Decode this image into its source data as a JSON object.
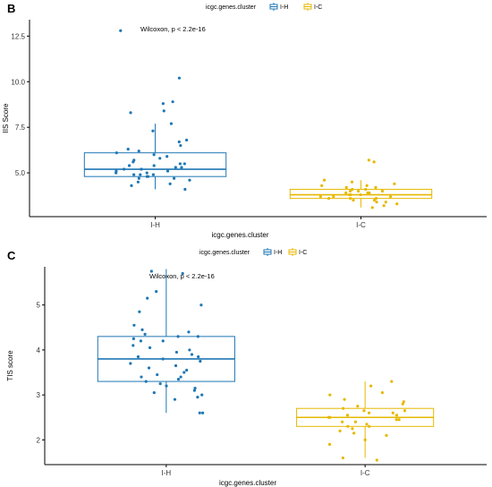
{
  "chart_data": [
    {
      "panel": "B",
      "type": "box",
      "legend_title": "icgc.genes.cluster",
      "legend_position": "top",
      "categories": [
        "I-H",
        "I-C"
      ],
      "colors": [
        "#1f77b4",
        "#e6b800"
      ],
      "xlabel": "icgc.genes.cluster",
      "ylabel": "IIS Score",
      "ylim": [
        2.6,
        13.4
      ],
      "yticks": [
        5.0,
        7.5,
        10.0,
        12.5
      ],
      "ytick_labels": [
        "5.0",
        "7.5",
        "10.0",
        "12.5"
      ],
      "annotation": "Wilcoxon, p < 2.2e-16",
      "grid": false,
      "series": [
        {
          "name": "I-H",
          "box": {
            "min": 4.1,
            "q1": 4.8,
            "median": 5.2,
            "q3": 6.1,
            "max": 7.7
          },
          "points": [
            12.8,
            10.2,
            8.9,
            8.8,
            8.4,
            8.3,
            7.7,
            7.3,
            6.8,
            6.7,
            6.5,
            6.3,
            6.2,
            6.1,
            6.0,
            5.9,
            5.8,
            5.7,
            5.6,
            5.5,
            5.5,
            5.4,
            5.4,
            5.3,
            5.3,
            5.2,
            5.2,
            5.1,
            5.1,
            5.0,
            5.0,
            4.9,
            4.9,
            4.9,
            4.8,
            4.8,
            4.7,
            4.7,
            4.6,
            4.5,
            4.4,
            4.3,
            4.1
          ]
        },
        {
          "name": "I-C",
          "box": {
            "min": 3.1,
            "q1": 3.6,
            "median": 3.8,
            "q3": 4.1,
            "max": 4.6
          },
          "points": [
            5.7,
            5.6,
            4.6,
            4.5,
            4.4,
            4.3,
            4.3,
            4.2,
            4.2,
            4.1,
            4.1,
            4.0,
            4.0,
            4.0,
            3.9,
            3.9,
            3.9,
            3.8,
            3.8,
            3.8,
            3.7,
            3.7,
            3.7,
            3.6,
            3.6,
            3.6,
            3.5,
            3.5,
            3.4,
            3.4,
            3.3,
            3.2,
            3.1
          ]
        }
      ]
    },
    {
      "panel": "C",
      "type": "box",
      "legend_title": "icgc.genes.cluster",
      "legend_position": "top",
      "categories": [
        "I-H",
        "I-C"
      ],
      "colors": [
        "#1f77b4",
        "#e6b800"
      ],
      "xlabel": "icgc.genes.cluster",
      "ylabel": "TIS score",
      "ylim": [
        1.45,
        5.85
      ],
      "yticks": [
        2,
        3,
        4,
        5
      ],
      "ytick_labels": [
        "2",
        "3",
        "4",
        "5"
      ],
      "annotation": "Wilcoxon, p < 2.2e-16",
      "grid": false,
      "series": [
        {
          "name": "I-H",
          "box": {
            "min": 2.6,
            "q1": 3.3,
            "median": 3.8,
            "q3": 4.3,
            "max": 5.8
          },
          "points": [
            5.75,
            5.7,
            5.3,
            5.15,
            5.0,
            4.85,
            4.55,
            4.45,
            4.4,
            4.35,
            4.3,
            4.3,
            4.25,
            4.2,
            4.2,
            4.1,
            4.05,
            4.0,
            3.95,
            3.9,
            3.85,
            3.85,
            3.8,
            3.75,
            3.7,
            3.65,
            3.6,
            3.55,
            3.5,
            3.45,
            3.4,
            3.4,
            3.35,
            3.3,
            3.25,
            3.2,
            3.15,
            3.1,
            3.05,
            3.0,
            2.95,
            2.9,
            2.6,
            2.6
          ]
        },
        {
          "name": "I-C",
          "box": {
            "min": 1.6,
            "q1": 2.3,
            "median": 2.5,
            "q3": 2.7,
            "max": 3.3
          },
          "points": [
            3.3,
            3.2,
            3.05,
            3.0,
            2.9,
            2.85,
            2.8,
            2.75,
            2.7,
            2.65,
            2.65,
            2.6,
            2.6,
            2.55,
            2.55,
            2.5,
            2.5,
            2.45,
            2.45,
            2.4,
            2.4,
            2.35,
            2.3,
            2.3,
            2.25,
            2.2,
            2.15,
            2.1,
            2.0,
            1.9,
            1.6,
            1.55
          ]
        }
      ]
    }
  ]
}
